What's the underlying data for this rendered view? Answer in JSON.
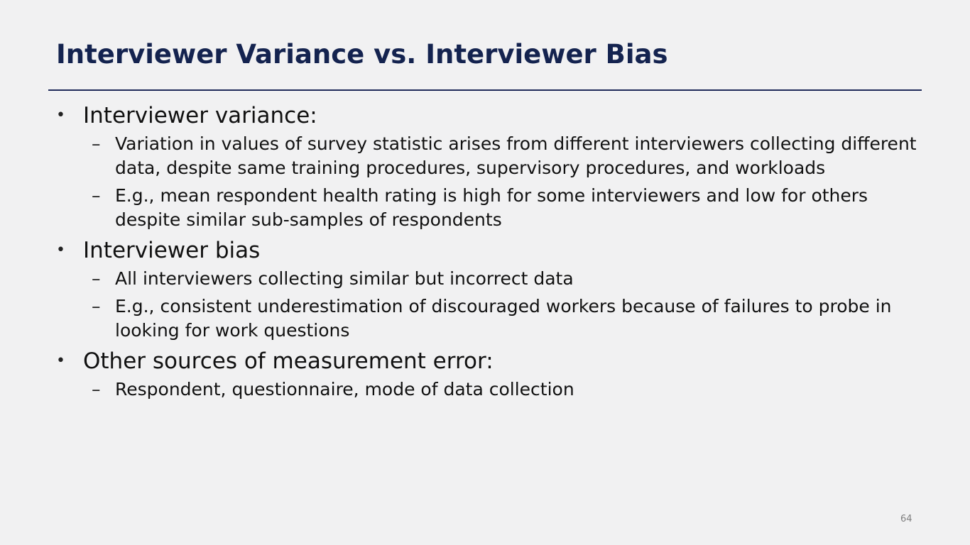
{
  "slide": {
    "title": "Interviewer Variance vs. Interviewer Bias",
    "page_number": "64",
    "colors": {
      "title": "#14234f",
      "rule": "#1f2a5a",
      "background": "#f1f1f2"
    },
    "bullet_symbol": "•",
    "sub_bullet_symbol": "–",
    "bullets": [
      {
        "text": "Interviewer variance:",
        "subs": [
          "Variation in values of survey statistic arises from different interviewers collecting different data, despite same training procedures, supervisory procedures, and workloads",
          "E.g., mean respondent health rating is high for some interviewers and low for others despite similar sub-samples of respondents"
        ]
      },
      {
        "text": "Interviewer bias",
        "subs": [
          "All interviewers collecting similar but incorrect data",
          "E.g., consistent underestimation of discouraged workers because of failures to probe in looking for work questions"
        ]
      },
      {
        "text": "Other sources of measurement error:",
        "subs": [
          "Respondent, questionnaire, mode of data collection"
        ]
      }
    ]
  }
}
